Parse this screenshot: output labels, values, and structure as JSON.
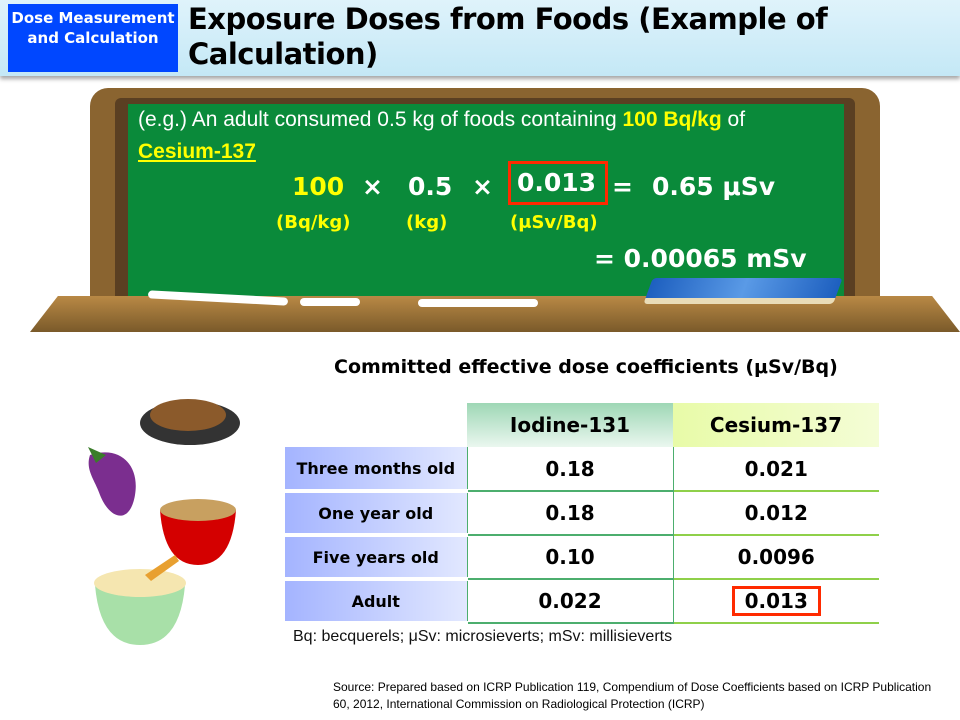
{
  "header": {
    "badge": "Dose Measurement and Calculation",
    "title": "Exposure Doses from Foods (Example of Calculation)"
  },
  "board": {
    "line1_pre": "(e.g.) An adult consumed 0.5 kg of foods containing ",
    "line1_hl": "100 Bq/kg",
    "line1_post": " of",
    "line2": "Cesium-137",
    "f_a": "100",
    "f_x1": "×",
    "f_b": "0.5",
    "f_x2": "×",
    "f_c": "0.013",
    "f_eq": "=",
    "f_res": "0.65 μSv",
    "u_a": "(Bq/kg)",
    "u_b": "(kg)",
    "u_c": "(μSv/Bq)",
    "res2": "= 0.00065 mSv"
  },
  "table": {
    "caption": "Committed effective dose coefficients (μSv/Bq)",
    "columns": [
      "Iodine-131",
      "Cesium-137"
    ],
    "rows": [
      {
        "label": "Three months old",
        "values": [
          "0.18",
          "0.021"
        ]
      },
      {
        "label": "One year old",
        "values": [
          "0.18",
          "0.012"
        ]
      },
      {
        "label": "Five years old",
        "values": [
          "0.10",
          "0.0096"
        ]
      },
      {
        "label": "Adult",
        "values": [
          "0.022",
          "0.013"
        ]
      }
    ],
    "highlight_color": "#ff2a00"
  },
  "note": "Bq: becquerels; μSv: microsieverts; mSv: millisieverts",
  "source": "Source: Prepared based on ICRP Publication 119, Compendium of Dose Coefficients based on ICRP Publication 60, 2012, International Commission on Radiological Protection (ICRP)",
  "icons": [
    "steak-icon",
    "eggplant-icon",
    "miso-soup-icon",
    "tempura-bowl-icon"
  ]
}
